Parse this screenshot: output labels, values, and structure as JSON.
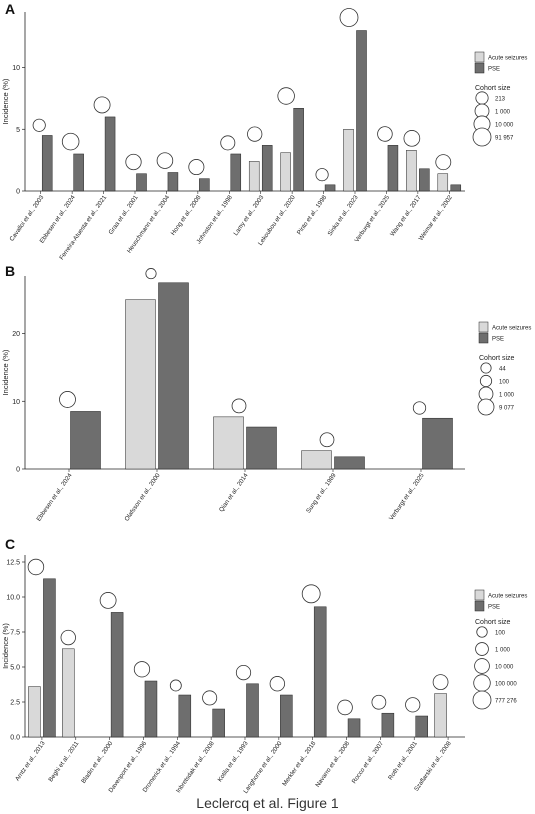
{
  "figure": {
    "caption": "Leclercq et al. Figure 1",
    "colors": {
      "acute": "#d9d9d9",
      "pse": "#6e6e6e",
      "outline": "#222222"
    }
  },
  "chart_data": [
    {
      "panel_label": "A",
      "type": "bar",
      "ylabel": "Incidence (%)",
      "ylim": [
        0,
        14.5
      ],
      "yticks": [
        "0",
        "5",
        "10"
      ],
      "categories": [
        "Cavalloi et al., 2003",
        "Ebbesen et al., 2024",
        "Ferreira-Atuesta et al., 2021",
        "Graa et al., 2001",
        "Heuschmann et al., 2004",
        "Hong et al., 2008",
        "Johnston et al., 1998",
        "Lamy et al., 2003",
        "Lekoubou et al., 2020",
        "Pinto et al., 1998",
        "Sinka et al., 2023",
        "Verburgt et al., 2025",
        "Wang et al., 2017",
        "Weimar et al., 2002"
      ],
      "series": [
        {
          "name": "Acute seizures",
          "values": [
            null,
            null,
            null,
            null,
            null,
            null,
            null,
            2.4,
            3.1,
            null,
            5.0,
            null,
            3.3,
            1.4
          ]
        },
        {
          "name": "PSE",
          "values": [
            4.5,
            3.0,
            6.0,
            1.4,
            1.5,
            1.0,
            3.0,
            3.7,
            6.7,
            0.5,
            13.0,
            3.7,
            1.8,
            0.5
          ]
        }
      ],
      "cohort_size": [
        213,
        19000,
        9000,
        4500,
        6000,
        3500,
        1200,
        1600,
        17000,
        213,
        91957,
        2000,
        7000,
        3000
      ],
      "legend": {
        "entries": [
          "Acute seizures",
          "PSE"
        ],
        "size_title": "Cohort size",
        "size_labels": [
          "213",
          "1 000",
          "10 000",
          "91 957"
        ]
      }
    },
    {
      "panel_label": "B",
      "type": "bar",
      "ylabel": "Incidence (%)",
      "ylim": [
        0,
        28.5
      ],
      "yticks": [
        "0",
        "10",
        "20"
      ],
      "categories": [
        "Ebbesen et al., 2024",
        "Olafsson et al., 2000",
        "Qian et al., 2014",
        "Sung et al., 1989",
        "Verburgt et al., 2025"
      ],
      "series": [
        {
          "name": "Acute seizures",
          "values": [
            null,
            25.0,
            7.7,
            2.7,
            null
          ]
        },
        {
          "name": "PSE",
          "values": [
            8.5,
            27.5,
            6.2,
            1.8,
            7.5
          ]
        }
      ],
      "cohort_size": [
        9077,
        44,
        1000,
        1000,
        250
      ],
      "legend": {
        "entries": [
          "Acute seizures",
          "PSE"
        ],
        "size_title": "Cohort size",
        "size_labels": [
          "44",
          "100",
          "1 000",
          "9 077"
        ]
      }
    },
    {
      "panel_label": "C",
      "type": "bar",
      "ylabel": "Incidence (%)",
      "ylim": [
        0,
        13
      ],
      "yticks": [
        "0.0",
        "2.5",
        "5.0",
        "7.5",
        "10.0",
        "12.5"
      ],
      "categories": [
        "Arntz et al., 2013",
        "Beghi et al., 2011",
        "Bladin et al., 2000",
        "Davenport et al., 1996",
        "Dromerick et al., 1994",
        "Inbretsdak et al., 2008",
        "Kotila et al., 1993",
        "Langhorne et al., 2000",
        "Merkler et al., 2018",
        "Navarro et al., 2008",
        "Rocco et al., 2007",
        "Roth et al., 2001",
        "Szaflarski et al., 2008"
      ],
      "series": [
        {
          "name": "Acute seizures",
          "values": [
            3.6,
            6.3,
            null,
            null,
            null,
            null,
            null,
            null,
            null,
            null,
            null,
            null,
            3.1
          ]
        },
        {
          "name": "PSE",
          "values": [
            11.3,
            null,
            8.9,
            4.0,
            3.0,
            2.0,
            3.8,
            3.0,
            9.3,
            1.3,
            1.7,
            1.5,
            null
          ]
        }
      ],
      "cohort_size": [
        10000,
        3000,
        15000,
        8000,
        100,
        2000,
        2500,
        3000,
        200000,
        3500,
        1500,
        2500,
        4500
      ],
      "legend": {
        "entries": [
          "Acute seizures",
          "PSE"
        ],
        "size_title": "Cohort size",
        "size_labels": [
          "100",
          "1 000",
          "10 000",
          "100 000",
          "777 276"
        ]
      }
    }
  ]
}
